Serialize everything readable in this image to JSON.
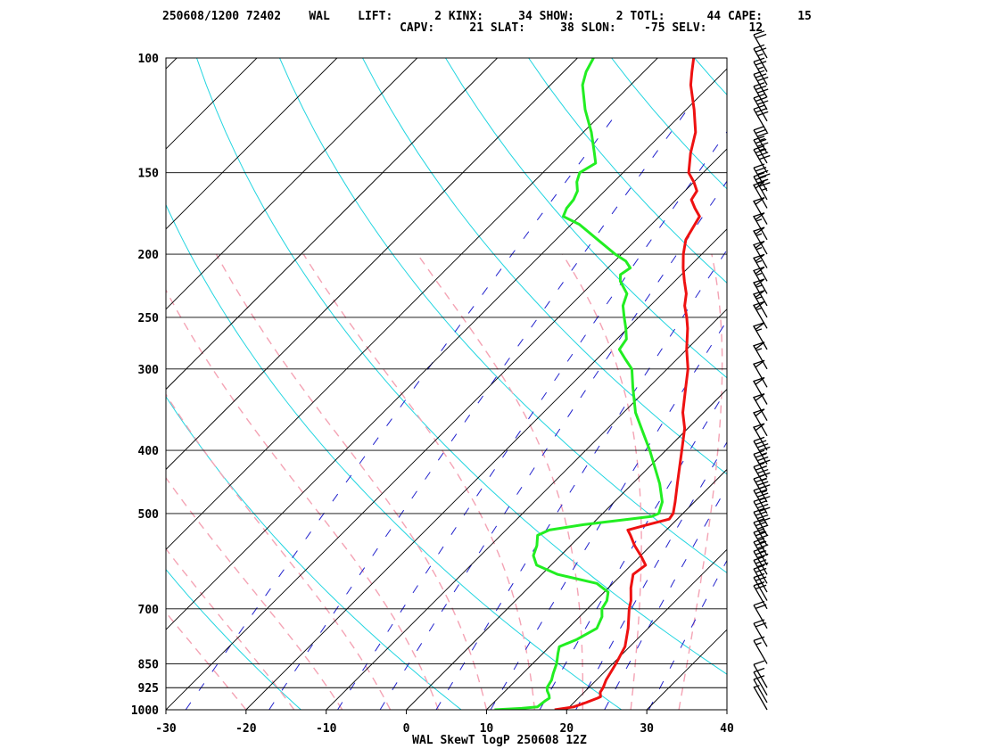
{
  "header": {
    "line1": "250608/1200 72402    WAL    LIFT:      2 KINX:     34 SHOW:      2 TOTL:      44 CAPE:     15",
    "line2": "                                  CAPV:     21 SLAT:     38 SLON:    -75 SELV:      12"
  },
  "chart_data": {
    "type": "line",
    "title": "WAL SkewT logP 250608 12Z",
    "station": "WAL",
    "station_id": "72402",
    "indices": {
      "LIFT": 2,
      "KINX": 34,
      "SHOW": 2,
      "TOTL": 44,
      "CAPE": 15,
      "CAPV": 21,
      "SLAT": 38,
      "SLON": -75,
      "SELV": 12
    },
    "x_ticks": [
      -30,
      -20,
      -10,
      0,
      10,
      20,
      30,
      40
    ],
    "xlim": [
      -30,
      40
    ],
    "p_ticks": [
      100,
      150,
      200,
      250,
      300,
      400,
      500,
      700,
      850,
      925,
      1000
    ],
    "ylim": [
      1000,
      100
    ],
    "y_scale": "log",
    "grid": true,
    "series": [
      {
        "color": "#ee1111",
        "points": [
          [
            1000,
            18.5
          ],
          [
            990,
            20.5
          ],
          [
            975,
            21.5
          ],
          [
            960,
            22.4
          ],
          [
            955,
            22.6
          ],
          [
            940,
            22
          ],
          [
            925,
            21.8
          ],
          [
            900,
            21.2
          ],
          [
            850,
            20.4
          ],
          [
            800,
            19.4
          ],
          [
            750,
            17.5
          ],
          [
            700,
            15.2
          ],
          [
            680,
            14.4
          ],
          [
            650,
            12.8
          ],
          [
            620,
            11.4
          ],
          [
            600,
            11.8
          ],
          [
            580,
            10
          ],
          [
            560,
            8
          ],
          [
            540,
            6.2
          ],
          [
            530,
            5.2
          ],
          [
            520,
            7
          ],
          [
            510,
            9
          ],
          [
            500,
            8.8
          ],
          [
            480,
            7.6
          ],
          [
            450,
            5.6
          ],
          [
            400,
            2
          ],
          [
            370,
            -0.4
          ],
          [
            350,
            -2.6
          ],
          [
            320,
            -5.4
          ],
          [
            300,
            -7.4
          ],
          [
            280,
            -10
          ],
          [
            260,
            -12.5
          ],
          [
            250,
            -14
          ],
          [
            240,
            -15.7
          ],
          [
            230,
            -17
          ],
          [
            220,
            -18.8
          ],
          [
            210,
            -20.6
          ],
          [
            200,
            -22.3
          ],
          [
            190,
            -23.8
          ],
          [
            175,
            -25
          ],
          [
            170,
            -26.6
          ],
          [
            165,
            -28.1
          ],
          [
            160,
            -28.5
          ],
          [
            155,
            -30
          ],
          [
            150,
            -31.8
          ],
          [
            140,
            -34
          ],
          [
            130,
            -36
          ],
          [
            120,
            -39
          ],
          [
            110,
            -42.5
          ],
          [
            105,
            -44
          ],
          [
            100,
            -45.5
          ]
        ]
      },
      {
        "color": "#22ee22",
        "points": [
          [
            1000,
            11
          ],
          [
            995,
            14.2
          ],
          [
            990,
            16
          ],
          [
            970,
            16.2
          ],
          [
            960,
            16.4
          ],
          [
            950,
            16
          ],
          [
            935,
            15.2
          ],
          [
            925,
            14.8
          ],
          [
            900,
            14.4
          ],
          [
            880,
            13.8
          ],
          [
            850,
            13
          ],
          [
            820,
            11.9
          ],
          [
            800,
            11.2
          ],
          [
            780,
            12.5
          ],
          [
            750,
            13.6
          ],
          [
            720,
            12.8
          ],
          [
            700,
            11.8
          ],
          [
            680,
            11.4
          ],
          [
            660,
            10.5
          ],
          [
            640,
            8
          ],
          [
            620,
            2
          ],
          [
            600,
            -1.8
          ],
          [
            580,
            -3.4
          ],
          [
            560,
            -4.2
          ],
          [
            540,
            -5.4
          ],
          [
            530,
            -4.6
          ],
          [
            520,
            -1
          ],
          [
            510,
            4
          ],
          [
            505,
            6.5
          ],
          [
            500,
            7
          ],
          [
            480,
            6
          ],
          [
            450,
            3.4
          ],
          [
            400,
            -2
          ],
          [
            380,
            -4.5
          ],
          [
            350,
            -8.5
          ],
          [
            320,
            -12
          ],
          [
            300,
            -14.4
          ],
          [
            290,
            -16.4
          ],
          [
            280,
            -18.4
          ],
          [
            270,
            -18.8
          ],
          [
            260,
            -20.2
          ],
          [
            250,
            -21.8
          ],
          [
            240,
            -23.4
          ],
          [
            230,
            -24.4
          ],
          [
            220,
            -26.8
          ],
          [
            215,
            -27.6
          ],
          [
            210,
            -27.2
          ],
          [
            205,
            -28.6
          ],
          [
            200,
            -30.8
          ],
          [
            190,
            -34.8
          ],
          [
            180,
            -39
          ],
          [
            175,
            -42
          ],
          [
            170,
            -42.6
          ],
          [
            165,
            -42.8
          ],
          [
            160,
            -43.4
          ],
          [
            155,
            -44.6
          ],
          [
            150,
            -45.4
          ],
          [
            145,
            -44.6
          ],
          [
            140,
            -46
          ],
          [
            130,
            -49
          ],
          [
            120,
            -52.6
          ],
          [
            110,
            -56
          ],
          [
            105,
            -57.2
          ],
          [
            100,
            -58
          ]
        ]
      }
    ],
    "wind_barbs": {
      "levels": [
        1000,
        975,
        950,
        925,
        850,
        800,
        750,
        700,
        680,
        660,
        640,
        620,
        600,
        580,
        560,
        540,
        520,
        500,
        480,
        460,
        440,
        420,
        400,
        380,
        360,
        340,
        320,
        300,
        280,
        260,
        250,
        240,
        230,
        220,
        210,
        200,
        190,
        180,
        170,
        165,
        160,
        150,
        145,
        140,
        130,
        125,
        120,
        115,
        110,
        105,
        100
      ],
      "speed_kt": [
        5,
        10,
        10,
        10,
        15,
        20,
        20,
        20,
        25,
        25,
        30,
        30,
        35,
        35,
        35,
        40,
        40,
        40,
        45,
        45,
        45,
        45,
        50,
        50,
        50,
        50,
        50,
        55,
        55,
        55,
        55,
        55,
        55,
        55,
        55,
        55,
        55,
        50,
        50,
        45,
        45,
        40,
        35,
        35,
        30,
        30,
        30,
        30,
        25,
        25,
        20
      ]
    }
  }
}
